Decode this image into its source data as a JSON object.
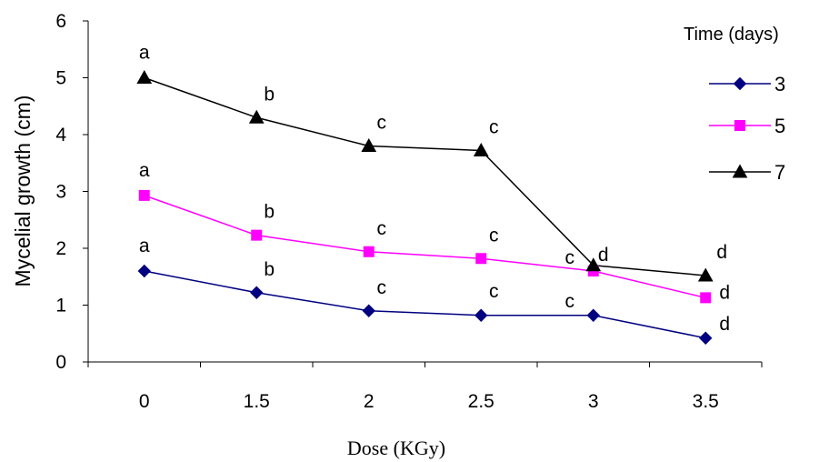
{
  "chart_data": {
    "type": "line",
    "categories": [
      "0",
      "1.5",
      "2",
      "2.5",
      "3",
      "3.5"
    ],
    "ylabel": "Mycelial growth (cm)",
    "xlabel": "Dose (KGy)",
    "ylim": [
      0,
      6
    ],
    "yticks": [
      "0",
      "1",
      "2",
      "3",
      "4",
      "5",
      "6"
    ],
    "grid": false,
    "legend": {
      "title": "Time (days)",
      "placement": "right"
    },
    "series": [
      {
        "name": "3",
        "color": "#000080",
        "marker": "diamond",
        "values": [
          1.6,
          1.22,
          0.9,
          0.82,
          0.82,
          0.42
        ],
        "letters": [
          "a",
          "b",
          "c",
          "c",
          "c",
          "d"
        ]
      },
      {
        "name": "5",
        "color": "#ff00ff",
        "marker": "square",
        "values": [
          2.93,
          2.23,
          1.94,
          1.82,
          1.6,
          1.13
        ],
        "letters": [
          "a",
          "b",
          "c",
          "c",
          "c",
          "d"
        ]
      },
      {
        "name": "7",
        "color": "#000000",
        "marker": "triangle",
        "values": [
          5.0,
          4.3,
          3.8,
          3.72,
          1.7,
          1.52
        ],
        "letters": [
          "a",
          "b",
          "c",
          "c",
          "d",
          "d"
        ]
      }
    ]
  }
}
